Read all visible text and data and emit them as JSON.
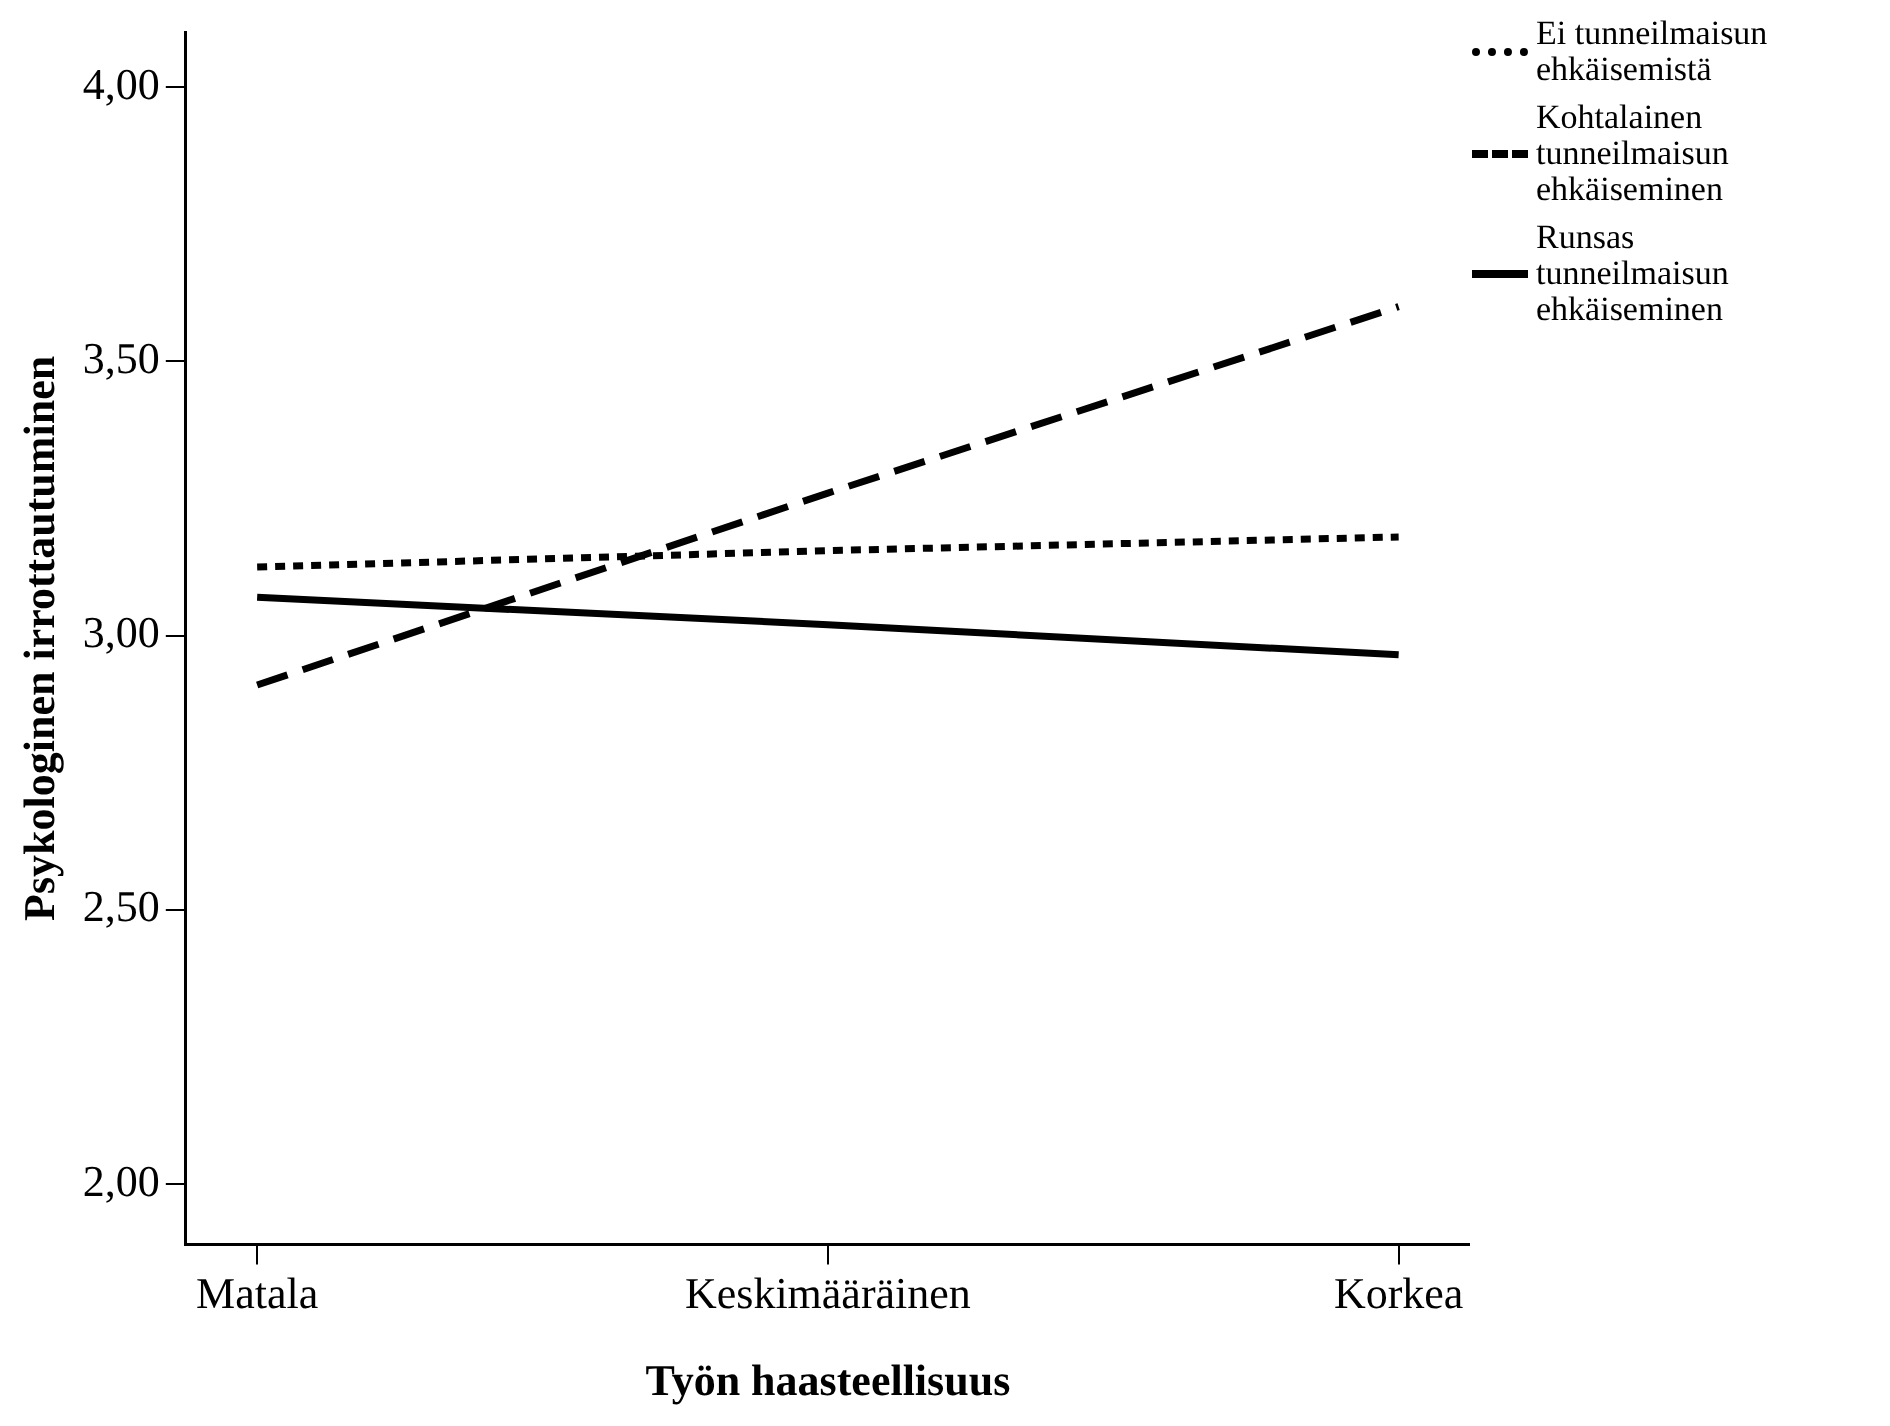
{
  "chart_data": {
    "type": "line",
    "xlabel": "Työn haasteellisuus",
    "ylabel": "Psykologinen irrottautuminen",
    "categories": [
      "Matala",
      "Keskimääräinen",
      "Korkea"
    ],
    "series": [
      {
        "name": "Ei tunneilmaisun ehkäisemistä",
        "color": "#000000",
        "line_style": "dotted",
        "values": [
          3.125,
          3.155,
          3.18
        ]
      },
      {
        "name": "Kohtalainen tunneilmaisun ehkäiseminen",
        "color": "#000000",
        "line_style": "dashed",
        "values": [
          2.91,
          3.26,
          3.6
        ]
      },
      {
        "name": "Runsas tunneilmaisun ehkäiseminen",
        "color": "#000000",
        "line_style": "solid",
        "values": [
          3.07,
          3.02,
          2.965
        ]
      }
    ],
    "ylim": [
      1.89,
      4.1
    ],
    "yticks": [
      {
        "value": 2,
        "label": "2,00"
      },
      {
        "value": 2.5,
        "label": "2,50"
      },
      {
        "value": 3,
        "label": "3,00"
      },
      {
        "value": 3.5,
        "label": "3,50"
      },
      {
        "value": 4,
        "label": "4,00"
      }
    ],
    "grid": false,
    "legend": "right",
    "marker": "none"
  }
}
